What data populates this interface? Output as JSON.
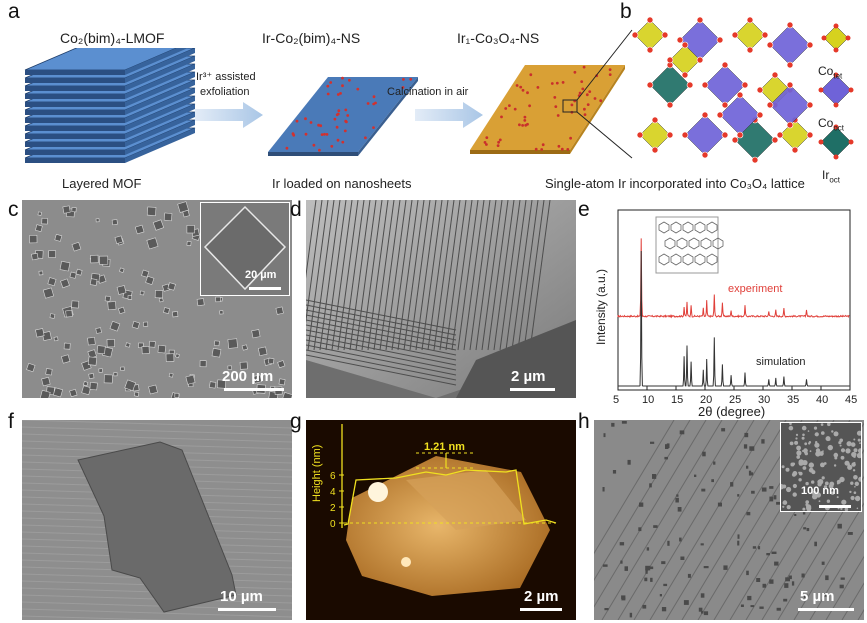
{
  "panel_labels": {
    "a": "a",
    "b": "b",
    "c": "c",
    "d": "d",
    "e": "e",
    "f": "f",
    "g": "g",
    "h": "h"
  },
  "panel_a": {
    "stage1_title": "Co₂(bim)₄-LMOF",
    "stage1_caption": "Layered MOF",
    "arrow1_label_line1": "Ir³⁺ assisted",
    "arrow1_label_line2": "exfoliation",
    "stage2_title": "Ir-Co₂(bim)₄-NS",
    "stage2_caption": "Ir loaded on nanosheets",
    "arrow2_label": "Calcination in air",
    "stage3_title": "Ir₁-Co₃O₄-NS",
    "stage3_caption": "Single-atom Ir incorporated into Co₃O₄ lattice"
  },
  "panel_b": {
    "legend": [
      {
        "label": "Co",
        "sub": "tet",
        "color": "#d6d21e"
      },
      {
        "label": "Co",
        "sub": "oct",
        "color": "#6f63d8"
      },
      {
        "label": "Ir",
        "sub": "oct",
        "color": "#1f6f66"
      }
    ]
  },
  "panel_c": {
    "scale": "200 µm",
    "inset_scale": "20 µm"
  },
  "panel_d": {
    "scale": "2 µm"
  },
  "panel_e": {
    "ylabel": "Intensity (a.u.)",
    "xlabel": "2θ (degree)",
    "series_experiment": "experiment",
    "series_simulation": "simulation",
    "ticks": [
      "5",
      "10",
      "15",
      "20",
      "25",
      "30",
      "35",
      "40",
      "45"
    ]
  },
  "panel_f": {
    "scale": "10 µm"
  },
  "panel_g": {
    "ylabel": "Height (nm)",
    "ticks": [
      "0",
      "2",
      "4",
      "6"
    ],
    "step_label": "1.21 nm",
    "scale": "2 µm"
  },
  "panel_h": {
    "scale": "5 µm",
    "inset_scale": "100 nm"
  },
  "chart_data": {
    "type": "line",
    "xlabel": "2θ (degree)",
    "ylabel": "Intensity (a.u.)",
    "xlim": [
      5,
      45
    ],
    "series": [
      {
        "name": "experiment",
        "x": [
          9.0,
          16.4,
          16.9,
          17.6,
          19.7,
          20.3,
          21.6,
          23.0,
          24.5,
          26.9,
          31.0,
          32.2,
          33.6,
          37.5
        ],
        "values": [
          1.0,
          0.12,
          0.18,
          0.15,
          0.1,
          0.2,
          0.28,
          0.18,
          0.08,
          0.14,
          0.07,
          0.08,
          0.1,
          0.09
        ]
      },
      {
        "name": "simulation",
        "x": [
          9.0,
          16.4,
          16.9,
          17.6,
          19.7,
          20.3,
          21.6,
          23.0,
          24.5,
          26.9,
          31.0,
          32.2,
          33.6,
          37.5
        ],
        "values": [
          1.0,
          0.22,
          0.3,
          0.18,
          0.12,
          0.2,
          0.36,
          0.16,
          0.08,
          0.1,
          0.05,
          0.06,
          0.07,
          0.05
        ]
      }
    ]
  }
}
